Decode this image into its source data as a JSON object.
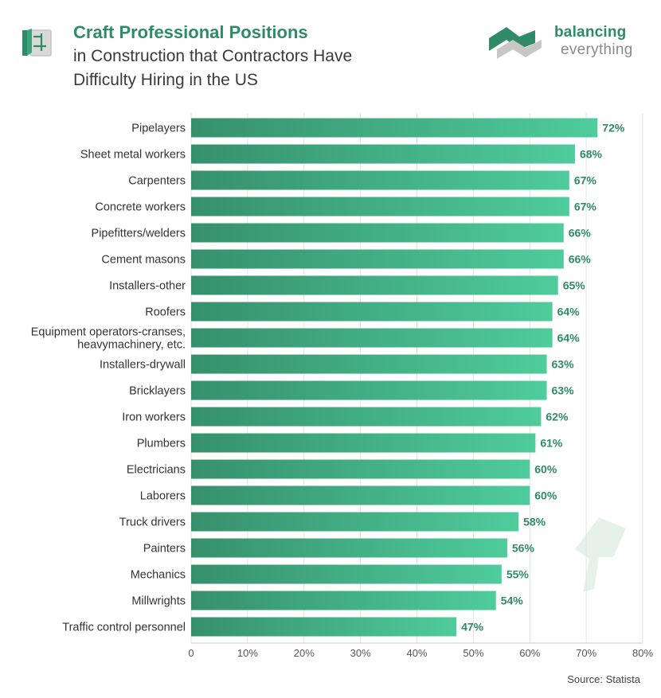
{
  "header": {
    "title_main": "Craft Professional Positions",
    "title_sub1": "in Construction that Contractors Have",
    "title_sub2": "Difficulty Hiring in the US"
  },
  "logo": {
    "line1": "balancing",
    "line2": "everything"
  },
  "source": "Source: Statista",
  "colors": {
    "bar_start": "#36906c",
    "bar_end": "#4fcc9c",
    "accent": "#2e8b66",
    "logo_gray": "#c7c7c7"
  },
  "chart_data": {
    "type": "bar",
    "orientation": "horizontal",
    "categories": [
      "Pipelayers",
      "Sheet metal workers",
      "Carpenters",
      "Concrete workers",
      "Pipefitters/welders",
      "Cement masons",
      "Installers-other",
      "Roofers",
      "Equipment operators-cranses, heavymachinery, etc.",
      "Installers-drywall",
      "Bricklayers",
      "Iron workers",
      "Plumbers",
      "Electricians",
      "Laborers",
      "Truck drivers",
      "Painters",
      "Mechanics",
      "Millwrights",
      "Traffic control personnel"
    ],
    "category_lines": [
      [
        "Pipelayers"
      ],
      [
        "Sheet metal workers"
      ],
      [
        "Carpenters"
      ],
      [
        "Concrete workers"
      ],
      [
        "Pipefitters/welders"
      ],
      [
        "Cement masons"
      ],
      [
        "Installers-other"
      ],
      [
        "Roofers"
      ],
      [
        "Equipment operators-cranses,",
        "heavymachinery, etc."
      ],
      [
        "Installers-drywall"
      ],
      [
        "Bricklayers"
      ],
      [
        "Iron workers"
      ],
      [
        "Plumbers"
      ],
      [
        "Electricians"
      ],
      [
        "Laborers"
      ],
      [
        "Truck drivers"
      ],
      [
        "Painters"
      ],
      [
        "Mechanics"
      ],
      [
        "Millwrights"
      ],
      [
        "Traffic control personnel"
      ]
    ],
    "values": [
      72,
      68,
      67,
      67,
      66,
      66,
      65,
      64,
      64,
      63,
      63,
      62,
      61,
      60,
      60,
      58,
      56,
      55,
      54,
      47
    ],
    "value_labels": [
      "72%",
      "68%",
      "67%",
      "67%",
      "66%",
      "66%",
      "65%",
      "64%",
      "64%",
      "63%",
      "63%",
      "62%",
      "61%",
      "60%",
      "60%",
      "58%",
      "56%",
      "55%",
      "54%",
      "47%"
    ],
    "xlim": [
      0,
      80
    ],
    "xticks": [
      0,
      10,
      20,
      30,
      40,
      50,
      60,
      70,
      80
    ],
    "xtick_labels": [
      "0",
      "10%",
      "20%",
      "30%",
      "40%",
      "50%",
      "60%",
      "70%",
      "80%"
    ],
    "grid": true,
    "title": "Craft Professional Positions in Construction that Contractors Have Difficulty Hiring in the US"
  }
}
